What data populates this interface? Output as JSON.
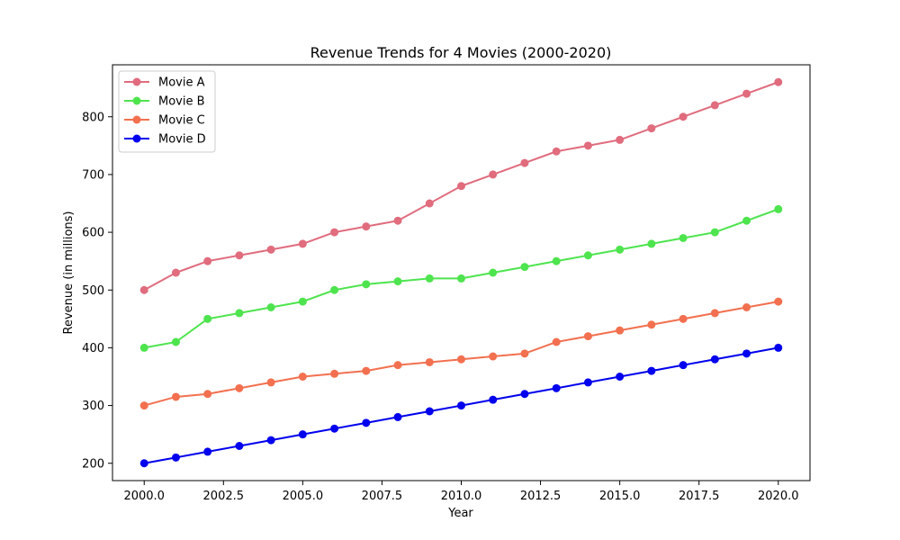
{
  "chart_data": {
    "type": "line",
    "title": "Revenue Trends for 4 Movies (2000-2020)",
    "xlabel": "Year",
    "ylabel": "Revenue (in millions)",
    "x": [
      2000,
      2001,
      2002,
      2003,
      2004,
      2005,
      2006,
      2007,
      2008,
      2009,
      2010,
      2011,
      2012,
      2013,
      2014,
      2015,
      2016,
      2017,
      2018,
      2019,
      2020
    ],
    "xlim": [
      1999,
      2021
    ],
    "ylim": [
      170,
      890
    ],
    "xticks": [
      2000,
      2002.5,
      2005,
      2007.5,
      2010,
      2012.5,
      2015,
      2017.5,
      2020
    ],
    "xtick_labels": [
      "2000.0",
      "2002.5",
      "2005.0",
      "2007.5",
      "2010.0",
      "2012.5",
      "2015.0",
      "2017.5",
      "2020.0"
    ],
    "yticks": [
      200,
      300,
      400,
      500,
      600,
      700,
      800
    ],
    "ytick_labels": [
      "200",
      "300",
      "400",
      "500",
      "600",
      "700",
      "800"
    ],
    "grid": false,
    "legend_position": "top-left",
    "series": [
      {
        "name": "Movie A",
        "color": "#e06c7e",
        "values": [
          500,
          530,
          550,
          560,
          570,
          580,
          600,
          610,
          620,
          650,
          680,
          700,
          720,
          740,
          750,
          760,
          780,
          800,
          820,
          840,
          860
        ]
      },
      {
        "name": "Movie B",
        "color": "#4ee44e",
        "values": [
          400,
          410,
          450,
          460,
          470,
          480,
          500,
          510,
          515,
          520,
          520,
          530,
          540,
          550,
          560,
          570,
          580,
          590,
          600,
          620,
          640
        ]
      },
      {
        "name": "Movie C",
        "color": "#f2704f",
        "values": [
          300,
          315,
          320,
          330,
          340,
          350,
          355,
          360,
          370,
          375,
          380,
          385,
          390,
          410,
          420,
          430,
          440,
          450,
          460,
          470,
          480
        ]
      },
      {
        "name": "Movie D",
        "color": "#0000ee",
        "values": [
          200,
          210,
          220,
          230,
          240,
          250,
          260,
          270,
          280,
          290,
          300,
          310,
          320,
          330,
          340,
          350,
          360,
          370,
          380,
          390,
          400
        ]
      }
    ]
  }
}
